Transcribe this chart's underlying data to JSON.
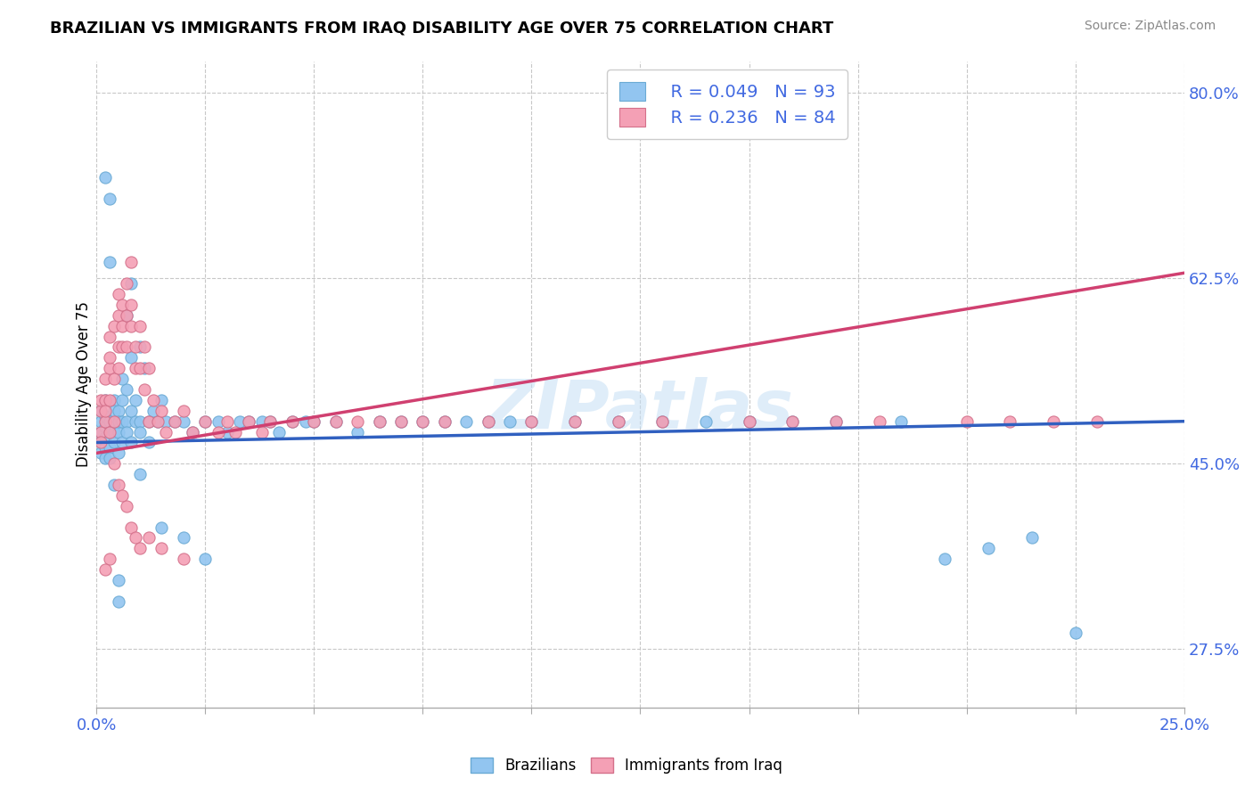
{
  "title": "BRAZILIAN VS IMMIGRANTS FROM IRAQ DISABILITY AGE OVER 75 CORRELATION CHART",
  "source": "Source: ZipAtlas.com",
  "ylabel": "Disability Age Over 75",
  "xlim": [
    0.0,
    0.25
  ],
  "ylim": [
    0.22,
    0.83
  ],
  "xticks": [
    0.0,
    0.025,
    0.05,
    0.075,
    0.1,
    0.125,
    0.15,
    0.175,
    0.2,
    0.225,
    0.25
  ],
  "yticks": [
    0.275,
    0.45,
    0.625,
    0.8
  ],
  "yticklabels": [
    "27.5%",
    "45.0%",
    "62.5%",
    "80.0%"
  ],
  "blue_color": "#92C5F0",
  "blue_edge": "#6aaad4",
  "pink_color": "#F4A0B5",
  "pink_edge": "#d4708a",
  "blue_line_color": "#3060C0",
  "pink_line_color": "#D04070",
  "legend_R_blue": "R = 0.049",
  "legend_N_blue": "N = 93",
  "legend_R_pink": "R = 0.236",
  "legend_N_pink": "N = 84",
  "watermark": "ZIPatlas",
  "grid_color": "#c8c8c8",
  "blue_trend_x0": 0.0,
  "blue_trend_y0": 0.47,
  "blue_trend_x1": 0.25,
  "blue_trend_y1": 0.49,
  "pink_trend_x0": 0.0,
  "pink_trend_y0": 0.46,
  "pink_trend_x1": 0.25,
  "pink_trend_y1": 0.63,
  "blue_x": [
    0.001,
    0.001,
    0.001,
    0.001,
    0.001,
    0.002,
    0.002,
    0.002,
    0.002,
    0.002,
    0.002,
    0.003,
    0.003,
    0.003,
    0.003,
    0.003,
    0.004,
    0.004,
    0.004,
    0.004,
    0.005,
    0.005,
    0.005,
    0.005,
    0.006,
    0.006,
    0.006,
    0.007,
    0.007,
    0.007,
    0.008,
    0.008,
    0.008,
    0.009,
    0.009,
    0.01,
    0.01,
    0.01,
    0.011,
    0.012,
    0.012,
    0.013,
    0.014,
    0.015,
    0.016,
    0.018,
    0.02,
    0.022,
    0.025,
    0.028,
    0.03,
    0.033,
    0.035,
    0.038,
    0.04,
    0.042,
    0.045,
    0.048,
    0.05,
    0.055,
    0.06,
    0.065,
    0.07,
    0.075,
    0.08,
    0.085,
    0.09,
    0.095,
    0.1,
    0.11,
    0.12,
    0.13,
    0.14,
    0.15,
    0.16,
    0.17,
    0.185,
    0.195,
    0.205,
    0.215,
    0.225,
    0.015,
    0.02,
    0.025,
    0.005,
    0.005,
    0.003,
    0.002,
    0.006,
    0.007,
    0.008,
    0.004,
    0.01
  ],
  "blue_y": [
    0.48,
    0.49,
    0.46,
    0.5,
    0.47,
    0.485,
    0.465,
    0.475,
    0.495,
    0.455,
    0.51,
    0.49,
    0.48,
    0.7,
    0.465,
    0.455,
    0.51,
    0.48,
    0.5,
    0.47,
    0.5,
    0.48,
    0.49,
    0.46,
    0.51,
    0.49,
    0.47,
    0.52,
    0.49,
    0.48,
    0.55,
    0.5,
    0.47,
    0.51,
    0.49,
    0.56,
    0.49,
    0.48,
    0.54,
    0.49,
    0.47,
    0.5,
    0.49,
    0.51,
    0.49,
    0.49,
    0.49,
    0.48,
    0.49,
    0.49,
    0.48,
    0.49,
    0.49,
    0.49,
    0.49,
    0.48,
    0.49,
    0.49,
    0.49,
    0.49,
    0.48,
    0.49,
    0.49,
    0.49,
    0.49,
    0.49,
    0.49,
    0.49,
    0.49,
    0.49,
    0.49,
    0.49,
    0.49,
    0.49,
    0.49,
    0.49,
    0.49,
    0.36,
    0.37,
    0.38,
    0.29,
    0.39,
    0.38,
    0.36,
    0.32,
    0.34,
    0.64,
    0.72,
    0.53,
    0.59,
    0.62,
    0.43,
    0.44
  ],
  "pink_x": [
    0.001,
    0.001,
    0.001,
    0.001,
    0.002,
    0.002,
    0.002,
    0.002,
    0.003,
    0.003,
    0.003,
    0.003,
    0.003,
    0.004,
    0.004,
    0.004,
    0.005,
    0.005,
    0.005,
    0.005,
    0.006,
    0.006,
    0.006,
    0.007,
    0.007,
    0.007,
    0.008,
    0.008,
    0.008,
    0.009,
    0.009,
    0.01,
    0.01,
    0.011,
    0.011,
    0.012,
    0.012,
    0.013,
    0.014,
    0.015,
    0.016,
    0.018,
    0.02,
    0.022,
    0.025,
    0.028,
    0.03,
    0.032,
    0.035,
    0.038,
    0.04,
    0.045,
    0.05,
    0.055,
    0.06,
    0.065,
    0.07,
    0.075,
    0.08,
    0.09,
    0.1,
    0.11,
    0.12,
    0.13,
    0.15,
    0.16,
    0.17,
    0.18,
    0.2,
    0.21,
    0.22,
    0.23,
    0.004,
    0.005,
    0.006,
    0.007,
    0.008,
    0.009,
    0.01,
    0.003,
    0.002,
    0.012,
    0.015,
    0.02
  ],
  "pink_y": [
    0.5,
    0.48,
    0.51,
    0.47,
    0.51,
    0.49,
    0.53,
    0.5,
    0.54,
    0.51,
    0.55,
    0.48,
    0.57,
    0.53,
    0.58,
    0.49,
    0.56,
    0.59,
    0.54,
    0.61,
    0.6,
    0.56,
    0.58,
    0.59,
    0.62,
    0.56,
    0.64,
    0.58,
    0.6,
    0.56,
    0.54,
    0.58,
    0.54,
    0.56,
    0.52,
    0.54,
    0.49,
    0.51,
    0.49,
    0.5,
    0.48,
    0.49,
    0.5,
    0.48,
    0.49,
    0.48,
    0.49,
    0.48,
    0.49,
    0.48,
    0.49,
    0.49,
    0.49,
    0.49,
    0.49,
    0.49,
    0.49,
    0.49,
    0.49,
    0.49,
    0.49,
    0.49,
    0.49,
    0.49,
    0.49,
    0.49,
    0.49,
    0.49,
    0.49,
    0.49,
    0.49,
    0.49,
    0.45,
    0.43,
    0.42,
    0.41,
    0.39,
    0.38,
    0.37,
    0.36,
    0.35,
    0.38,
    0.37,
    0.36
  ]
}
